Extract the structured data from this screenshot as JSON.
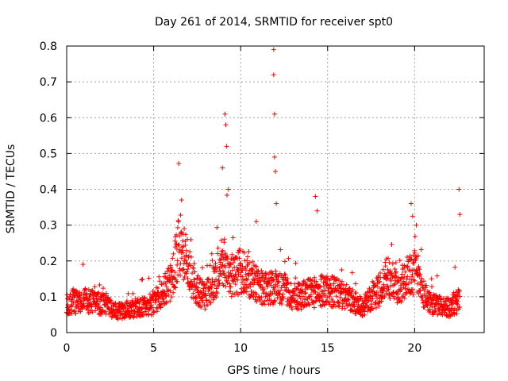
{
  "chart_data": {
    "type": "scatter",
    "title": "Day 261 of 2014, SRMTID for receiver spt0",
    "xlabel": "GPS time / hours",
    "ylabel": "SRMTID / TECUs",
    "xlim": [
      0,
      24
    ],
    "ylim": [
      0,
      0.8
    ],
    "x_ticks": [
      0,
      5,
      10,
      15,
      20
    ],
    "y_ticks": [
      0,
      0.1,
      0.2,
      0.3,
      0.4,
      0.5,
      0.6,
      0.7,
      0.8
    ],
    "grid": true,
    "marker": "+",
    "color": "#ff0000",
    "x_extent": [
      0,
      22.6
    ],
    "series_profile_hours": [
      0,
      1,
      2,
      3,
      4,
      5,
      5.5,
      6,
      6.5,
      7,
      7.5,
      8,
      8.5,
      9,
      9.5,
      10,
      10.5,
      11,
      11.5,
      12,
      12.5,
      13,
      14,
      15,
      16,
      17,
      18,
      18.5,
      19,
      19.5,
      20,
      20.5,
      21,
      22,
      22.6
    ],
    "series_profile_typical_tecu": [
      0.08,
      0.09,
      0.08,
      0.06,
      0.07,
      0.08,
      0.11,
      0.14,
      0.25,
      0.18,
      0.12,
      0.1,
      0.14,
      0.2,
      0.16,
      0.17,
      0.15,
      0.13,
      0.12,
      0.13,
      0.12,
      0.1,
      0.11,
      0.12,
      0.1,
      0.07,
      0.12,
      0.16,
      0.12,
      0.15,
      0.17,
      0.11,
      0.08,
      0.07,
      0.09
    ],
    "notable_peaks": [
      {
        "x": 11.9,
        "y": 0.79
      },
      {
        "x": 11.9,
        "y": 0.72
      },
      {
        "x": 11.95,
        "y": 0.61
      },
      {
        "x": 9.1,
        "y": 0.61
      },
      {
        "x": 9.15,
        "y": 0.58
      },
      {
        "x": 9.2,
        "y": 0.52
      },
      {
        "x": 11.95,
        "y": 0.49
      },
      {
        "x": 8.95,
        "y": 0.46
      },
      {
        "x": 12.0,
        "y": 0.45
      },
      {
        "x": 9.3,
        "y": 0.4
      },
      {
        "x": 22.55,
        "y": 0.4
      },
      {
        "x": 14.3,
        "y": 0.38
      },
      {
        "x": 6.6,
        "y": 0.37
      },
      {
        "x": 19.8,
        "y": 0.36
      },
      {
        "x": 12.05,
        "y": 0.36
      },
      {
        "x": 14.4,
        "y": 0.34
      },
      {
        "x": 22.6,
        "y": 0.33
      },
      {
        "x": 10.9,
        "y": 0.31
      },
      {
        "x": 20.1,
        "y": 0.3
      }
    ]
  }
}
